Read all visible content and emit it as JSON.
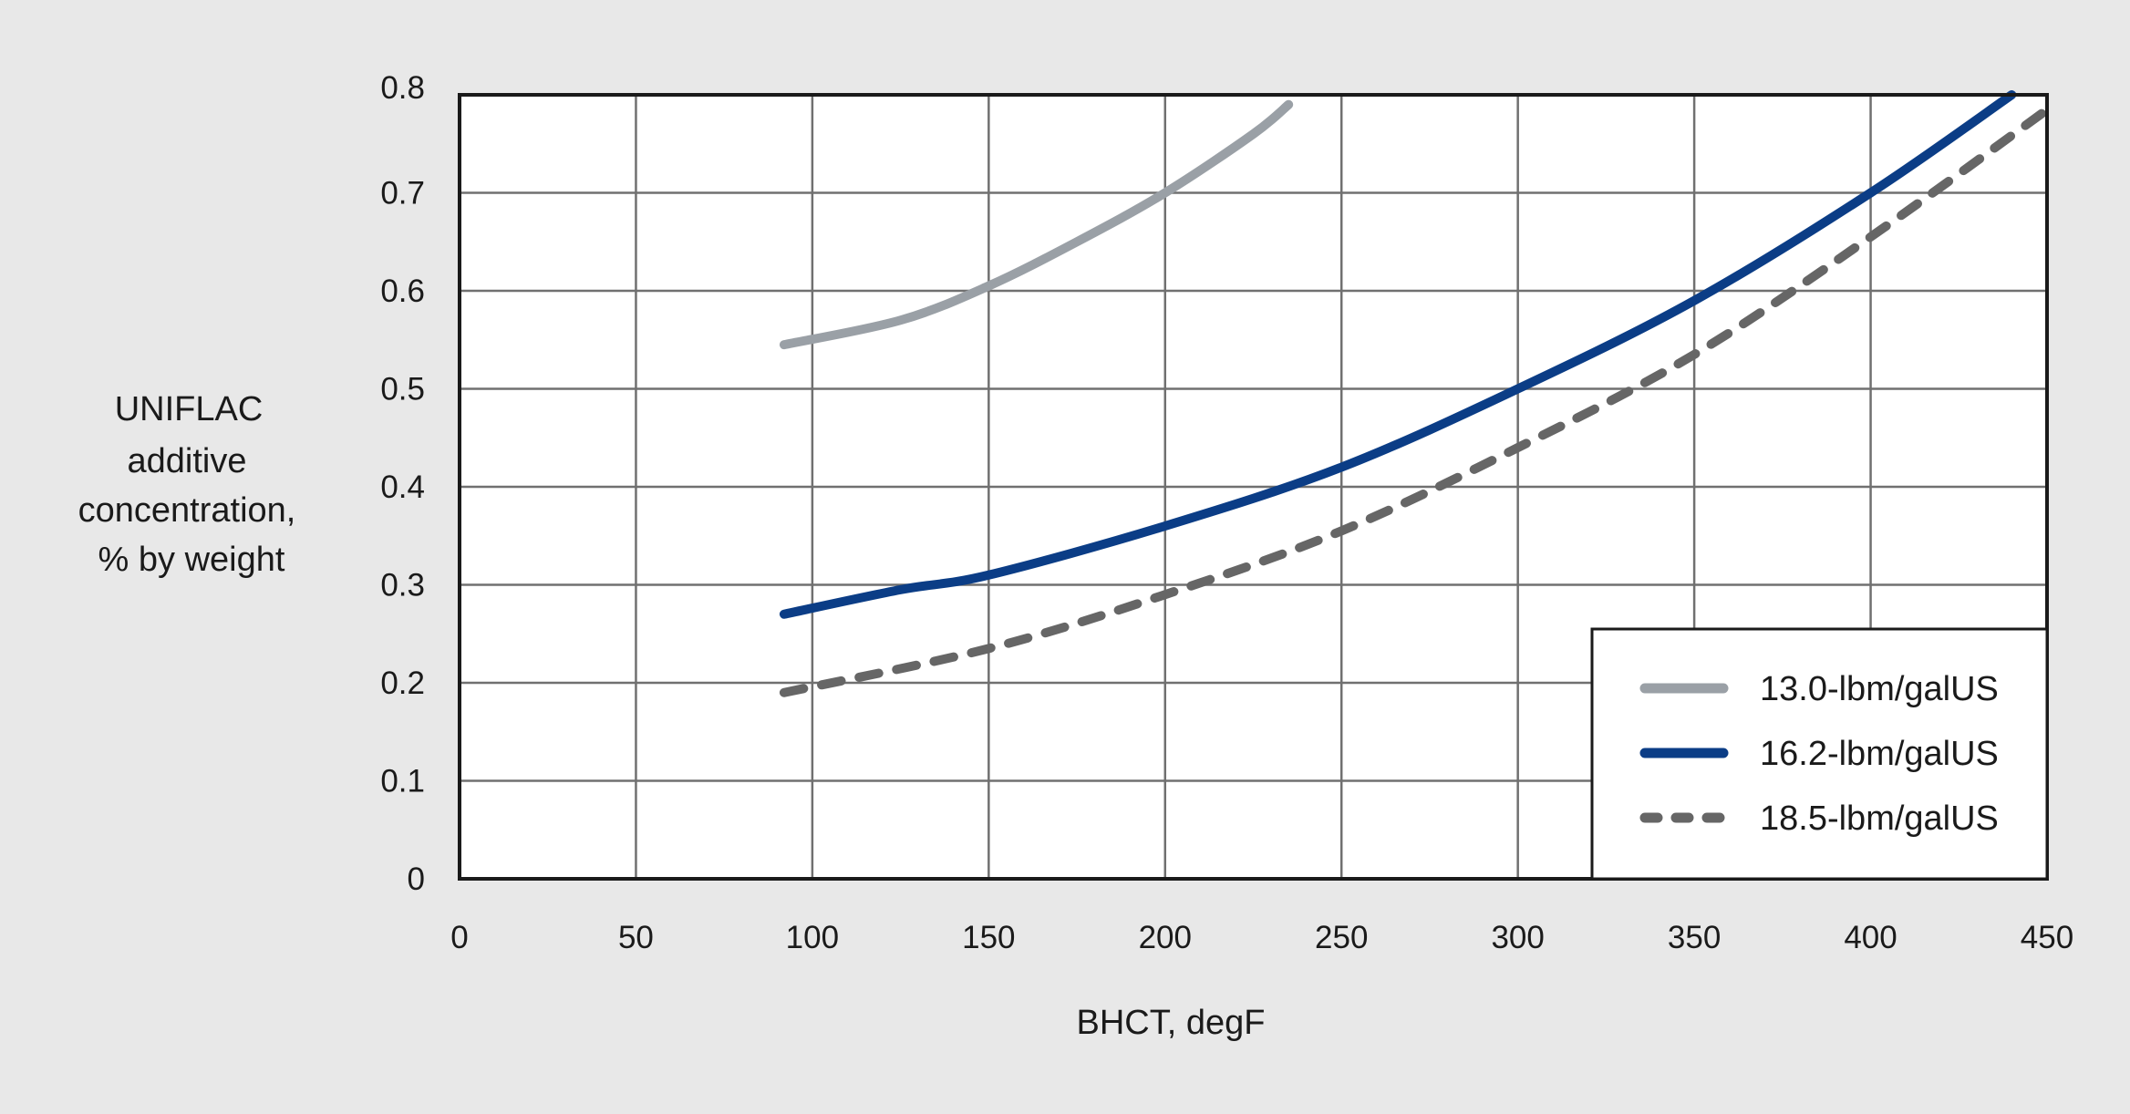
{
  "chart_data": {
    "type": "line",
    "xlabel": "BHCT, degF",
    "ylabel_lines": [
      "UNIFLAC",
      "additive",
      "concentration,",
      "% by weight"
    ],
    "xlim": [
      0,
      450
    ],
    "ylim": [
      0,
      0.8
    ],
    "xticks": [
      "0",
      "50",
      "100",
      "150",
      "200",
      "250",
      "300",
      "350",
      "400",
      "450"
    ],
    "yticks": [
      "0",
      "0.1",
      "0.2",
      "0.3",
      "0.4",
      "0.5",
      "0.6",
      "0.7",
      "0.8"
    ],
    "grid": true,
    "legend_placement": "bottom-right",
    "series": [
      {
        "name": "13.0-lbm/galUS",
        "color": "#9aa0a6",
        "style": "solid",
        "x": [
          92,
          125,
          150,
          175,
          200,
          225,
          235
        ],
        "y": [
          0.545,
          0.57,
          0.605,
          0.65,
          0.7,
          0.76,
          0.79
        ]
      },
      {
        "name": "16.2-lbm/galUS",
        "color": "#0b3d86",
        "style": "solid",
        "x": [
          92,
          125,
          150,
          200,
          250,
          300,
          350,
          400,
          440
        ],
        "y": [
          0.27,
          0.295,
          0.31,
          0.36,
          0.42,
          0.5,
          0.59,
          0.7,
          0.8
        ]
      },
      {
        "name": "18.5-lbm/galUS",
        "color": "#666666",
        "style": "dashed",
        "x": [
          92,
          150,
          200,
          250,
          300,
          350,
          400,
          452
        ],
        "y": [
          0.19,
          0.235,
          0.29,
          0.355,
          0.44,
          0.535,
          0.655,
          0.79
        ]
      }
    ]
  }
}
